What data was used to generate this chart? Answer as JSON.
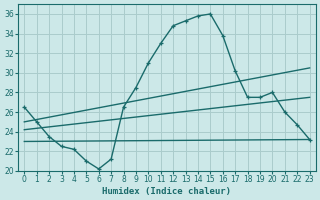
{
  "xlabel": "Humidex (Indice chaleur)",
  "bg_color": "#cce8e8",
  "grid_color": "#aacccc",
  "line_color": "#1a6b6b",
  "xlim": [
    -0.5,
    23.5
  ],
  "ylim": [
    20,
    37
  ],
  "xticks": [
    0,
    1,
    2,
    3,
    4,
    5,
    6,
    7,
    8,
    9,
    10,
    11,
    12,
    13,
    14,
    15,
    16,
    17,
    18,
    19,
    20,
    21,
    22,
    23
  ],
  "yticks": [
    20,
    22,
    24,
    26,
    28,
    30,
    32,
    34,
    36
  ],
  "curve1_x": [
    0,
    1,
    2,
    3,
    4,
    5,
    6,
    7,
    8,
    9,
    10,
    11,
    12,
    13,
    14,
    15,
    16,
    17,
    18,
    19,
    20,
    21,
    22,
    23
  ],
  "curve1_y": [
    26.5,
    25.0,
    23.5,
    22.5,
    22.2,
    21.0,
    20.2,
    21.2,
    26.5,
    28.5,
    31.0,
    33.0,
    34.8,
    35.3,
    35.8,
    36.0,
    33.8,
    30.2,
    27.5,
    27.5,
    28.0,
    26.0,
    24.7,
    23.2
  ],
  "line2_x": [
    0,
    23
  ],
  "line2_y": [
    25.0,
    30.5
  ],
  "line3_x": [
    0,
    23
  ],
  "line3_y": [
    24.2,
    27.5
  ],
  "line4_x": [
    0,
    23
  ],
  "line4_y": [
    23.0,
    23.2
  ]
}
